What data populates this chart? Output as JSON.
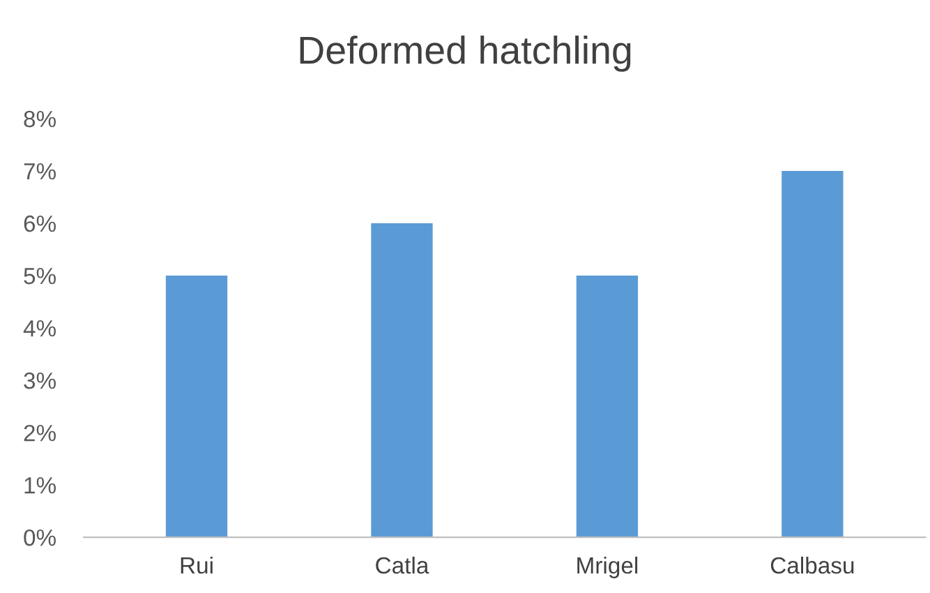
{
  "chart_data": {
    "type": "bar",
    "title": "Deformed hatchling",
    "categories": [
      "Rui",
      "Catla",
      "Mrigel",
      "Calbasu"
    ],
    "values": [
      5,
      6,
      5,
      7
    ],
    "color": "#5b9bd5",
    "ylim": [
      0,
      8
    ],
    "yticks": [
      {
        "value": 0,
        "label": "0%"
      },
      {
        "value": 1,
        "label": "1%"
      },
      {
        "value": 2,
        "label": "2%"
      },
      {
        "value": 3,
        "label": "3%"
      },
      {
        "value": 4,
        "label": "4%"
      },
      {
        "value": 5,
        "label": "5%"
      },
      {
        "value": 6,
        "label": "6%"
      },
      {
        "value": 7,
        "label": "7%"
      },
      {
        "value": 8,
        "label": "8%"
      }
    ],
    "grid": false,
    "legend": false
  }
}
